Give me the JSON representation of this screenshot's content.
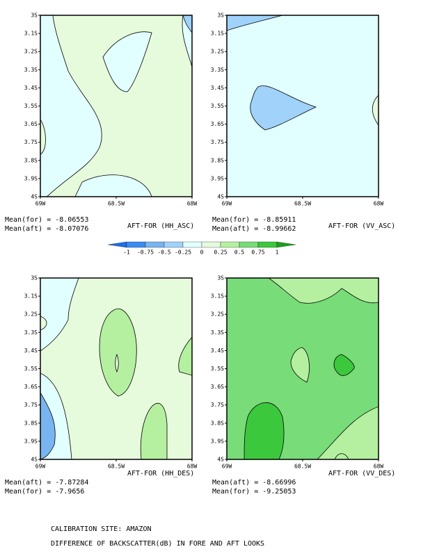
{
  "panels": [
    {
      "yticks": [
        "3S",
        "3.1S",
        "3.2S",
        "3.3S",
        "3.4S",
        "3.5S",
        "3.6S",
        "3.7S",
        "3.8S",
        "3.9S",
        "4S"
      ],
      "xticks": [
        "69W",
        "68.5W",
        "68W"
      ],
      "stats": [
        "Mean(for) = -8.06553",
        "Mean(aft) = -8.07076"
      ],
      "title": "AFT-FOR (HH_ASC)"
    },
    {
      "yticks": [
        "3S",
        "3.1S",
        "3.2S",
        "3.3S",
        "3.4S",
        "3.5S",
        "3.6S",
        "3.7S",
        "3.8S",
        "3.9S",
        "4S"
      ],
      "xticks": [
        "69W",
        "68.5W",
        "68W"
      ],
      "stats": [
        "Mean(for) = -8.85911",
        "Mean(aft) = -8.99662"
      ],
      "title": "AFT-FOR (VV_ASC)"
    },
    {
      "yticks": [
        "3S",
        "3.1S",
        "3.2S",
        "3.3S",
        "3.4S",
        "3.5S",
        "3.6S",
        "3.7S",
        "3.8S",
        "3.9S",
        "4S"
      ],
      "xticks": [
        "69W",
        "68.5W",
        "68W"
      ],
      "stats": [
        "Mean(aft) = -7.87284",
        "Mean(for) = -7.9656"
      ],
      "title": "AFT-FOR (HH_DES)"
    },
    {
      "yticks": [
        "3S",
        "3.1S",
        "3.2S",
        "3.3S",
        "3.4S",
        "3.5S",
        "3.6S",
        "3.7S",
        "3.8S",
        "3.9S",
        "4S"
      ],
      "xticks": [
        "69W",
        "68.5W",
        "68W"
      ],
      "stats": [
        "Mean(aft) = -8.66996",
        "Mean(for) = -9.25053"
      ],
      "title": "AFT-FOR (VV_DES)"
    }
  ],
  "colorbar": {
    "labels": [
      "-1",
      "-0.75",
      "-0.5",
      "-0.25",
      "0",
      "0.25",
      "0.5",
      "0.75",
      "1"
    ],
    "colors": [
      "#1e6ee6",
      "#3c8cf0",
      "#78b4f0",
      "#a0d2fa",
      "#e1ffff",
      "#e6fadc",
      "#b4f0a0",
      "#78dc78",
      "#3cc83c",
      "#1ea01e"
    ]
  },
  "footer": [
    "CALIBRATION SITE: AMAZON",
    "DIFFERENCE OF BACKSCATTER(dB) IN FORE AND AFT LOOKS"
  ]
}
